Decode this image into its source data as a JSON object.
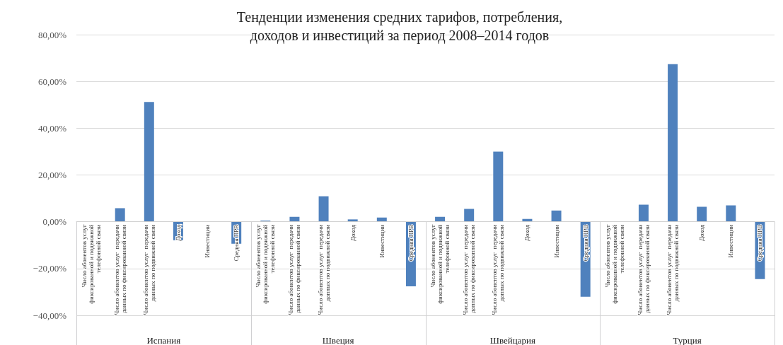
{
  "chart_data": {
    "type": "bar",
    "title": "Тенденции изменения средних тарифов, потребления,\nдоходов и инвестиций за период 2008–2014 годов",
    "categories": [
      "Число абонентов услуг фиксированной и подвижной телефонной связи",
      "Число абонентов услуг  передачи данных по фиксированной связи",
      "Число абонентов услуг  передачи данных по подвижной связи",
      "Доход",
      "Инвестиции",
      "Средняя ПРВ",
      "Число абонентов услуг фиксированной и подвижной телефонной связи",
      "Число абонентов услуг  передачи данных по фиксированной связи",
      "Число абонентов услуг  передачи данных по подвижной связи",
      "Доход",
      "Инвестиции",
      "Средняя ПРВ",
      "Число абонентов услуг фиксированной и подвижной телефонной связи",
      "Число абонентов услуг  передачи данных по фиксированной связи",
      "Число абонентов услуг  передачи данных по подвижной связи",
      "Доход",
      "Инвестиции",
      "Средняя ПРВ",
      "Число абонентов услуг фиксированной и подвижной телефонной связи",
      "Число абонентов услуг  передачи данных по фиксированной связи",
      "Число абонентов услуг  передачи данных по подвижной связи",
      "Доход",
      "Инвестиции",
      "Средняя ПРВ"
    ],
    "series": [
      {
        "color": "#4f81bd",
        "values": [
          0,
          5.8,
          51.2,
          -7.9,
          0,
          -9.4,
          0.5,
          2.1,
          10.9,
          1.0,
          1.8,
          -27.6,
          2.1,
          5.5,
          30.0,
          1.2,
          4.8,
          -32.1,
          0,
          7.3,
          67.4,
          6.4,
          7.0,
          -24.5
        ]
      }
    ],
    "annotations": [
      "Испания",
      "Швеция",
      "Швейцария",
      "Турция"
    ],
    "ylim": [
      -40,
      80
    ],
    "yticks": [
      {
        "value": -40,
        "label": "−40,00%"
      },
      {
        "value": -20,
        "label": "−20,00%"
      },
      {
        "value": 0,
        "label": "0,00%"
      },
      {
        "value": 20,
        "label": "20,00%"
      },
      {
        "value": 40,
        "label": "40,00%"
      },
      {
        "value": 60,
        "label": "60,00%"
      },
      {
        "value": 80,
        "label": "80,00%"
      }
    ],
    "grid": "y"
  }
}
